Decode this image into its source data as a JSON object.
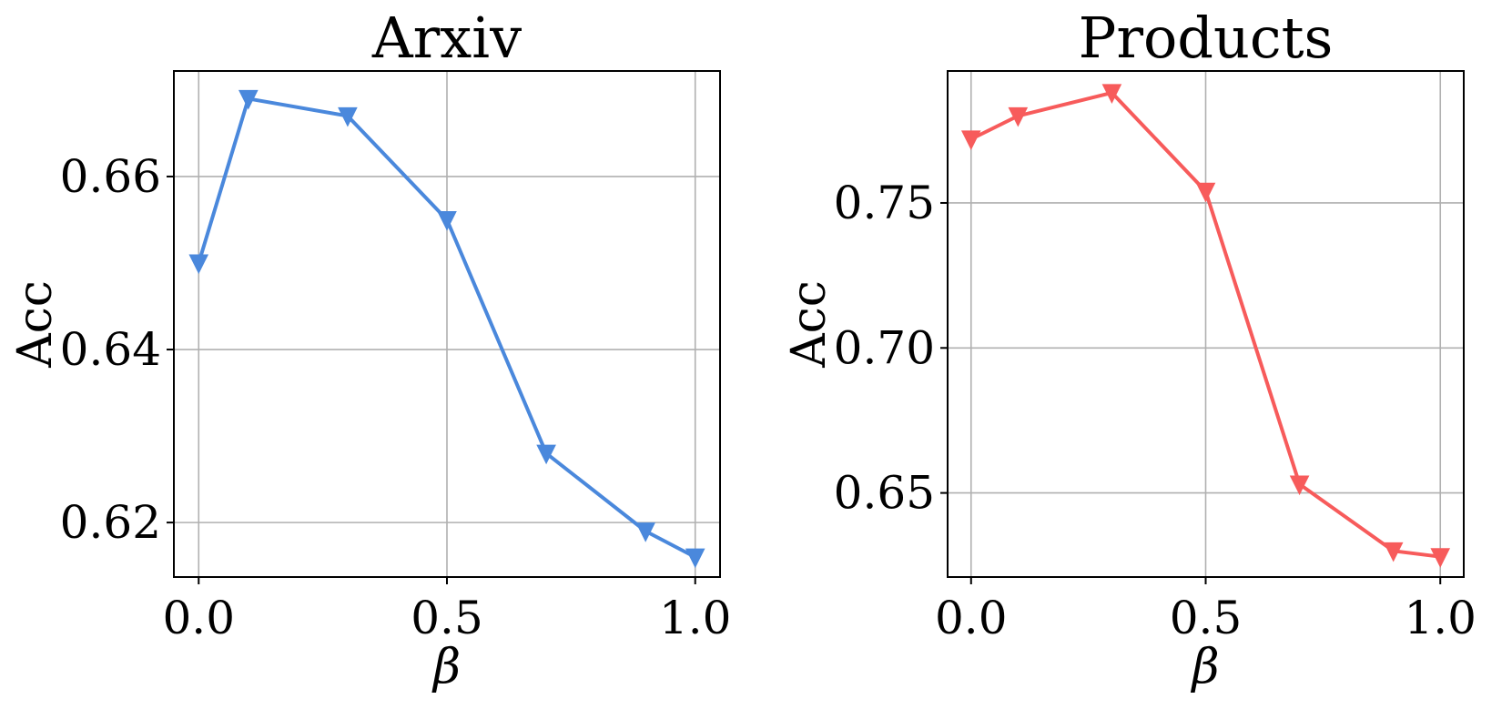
{
  "chart_data": [
    {
      "type": "line",
      "title": "Arxiv",
      "xlabel": "β",
      "ylabel": "Acc",
      "xlim": [
        -0.05,
        1.05
      ],
      "ylim": [
        0.6137,
        0.6722
      ],
      "xticks": [
        0.0,
        0.5,
        1.0
      ],
      "xtick_labels": [
        "0.0",
        "0.5",
        "1.0"
      ],
      "yticks": [
        0.62,
        0.64,
        0.66
      ],
      "ytick_labels": [
        "0.62",
        "0.64",
        "0.66"
      ],
      "grid": true,
      "marker": "triangle-down",
      "color": "#4a88dc",
      "series": [
        {
          "x": [
            0.0,
            0.1,
            0.3,
            0.5,
            0.7,
            0.9,
            1.0
          ],
          "values": [
            0.65,
            0.669,
            0.667,
            0.655,
            0.628,
            0.619,
            0.616
          ]
        }
      ]
    },
    {
      "type": "line",
      "title": "Products",
      "xlabel": "β",
      "ylabel": "Acc",
      "xlim": [
        -0.05,
        1.05
      ],
      "ylim": [
        0.621,
        0.7955
      ],
      "xticks": [
        0.0,
        0.5,
        1.0
      ],
      "xtick_labels": [
        "0.0",
        "0.5",
        "1.0"
      ],
      "yticks": [
        0.65,
        0.7,
        0.75
      ],
      "ytick_labels": [
        "0.65",
        "0.70",
        "0.75"
      ],
      "grid": true,
      "marker": "triangle-down",
      "color": "#f75b5b",
      "series": [
        {
          "x": [
            0.0,
            0.1,
            0.3,
            0.5,
            0.7,
            0.9,
            1.0
          ],
          "values": [
            0.772,
            0.78,
            0.788,
            0.754,
            0.653,
            0.63,
            0.628
          ]
        }
      ]
    }
  ]
}
